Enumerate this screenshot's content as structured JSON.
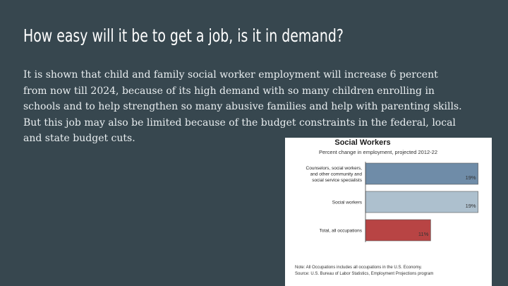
{
  "slide": {
    "title": "How easy will it be to get a job, is it in demand?",
    "body_lines": [
      "It is shown that child and family social worker employment will increase 6 percent",
      "from now till 2024, because of its high demand with so many children enrolling in",
      "schools and to help strengthen so many abusive families and help with parenting skills.",
      "But this job may also be limited because of the budget constraints in the federal, local",
      "and state budget cuts."
    ]
  },
  "chart_data": {
    "type": "bar",
    "orientation": "horizontal",
    "title": "Social Workers",
    "subtitle": "Percent change in employment, projected 2012-22",
    "categories": [
      [
        "Counselors, social workers,",
        "and other community and",
        "social service specialists"
      ],
      [
        "Social workers"
      ],
      [
        "Total, all occupations"
      ]
    ],
    "values": [
      19,
      19,
      11
    ],
    "value_labels": [
      "19%",
      "19%",
      "11%"
    ],
    "bar_colors": [
      "#6f8ca8",
      "#adc0ce",
      "#b84444"
    ],
    "xlim": [
      0,
      20
    ],
    "grid": false,
    "notes": [
      "Note: All Occupations includes all occupations in the U.S. Economy.",
      "Source: U.S. Bureau of Labor Statistics, Employment Projections program"
    ]
  }
}
